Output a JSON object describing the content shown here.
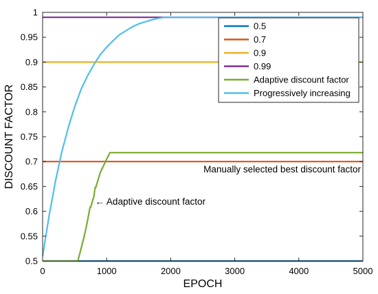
{
  "chart_data": {
    "type": "line",
    "xlabel": "EPOCH",
    "ylabel": "DISCOUNT FACTOR",
    "xlim": [
      0,
      5000
    ],
    "ylim": [
      0.5,
      1
    ],
    "x_ticks": [
      0,
      1000,
      2000,
      3000,
      4000,
      5000
    ],
    "y_ticks": [
      0.5,
      0.55,
      0.6,
      0.65,
      0.7,
      0.75,
      0.8,
      0.85,
      0.9,
      0.95,
      1
    ],
    "grid": false,
    "legend_position": "top-right",
    "series": [
      {
        "name": "0.5",
        "color": "#0072BD",
        "x": [
          0,
          5000
        ],
        "y": [
          0.5,
          0.5
        ]
      },
      {
        "name": "0.7",
        "color": "#D95319",
        "x": [
          0,
          5000
        ],
        "y": [
          0.7,
          0.7
        ]
      },
      {
        "name": "0.9",
        "color": "#EDB120",
        "x": [
          0,
          5000
        ],
        "y": [
          0.9,
          0.9
        ]
      },
      {
        "name": "0.99",
        "color": "#7E2F8E",
        "x": [
          0,
          5000
        ],
        "y": [
          0.99,
          0.99
        ]
      },
      {
        "name": "Adaptive discount factor",
        "color": "#77AC30",
        "x": [
          0,
          550,
          650,
          700,
          740,
          750,
          800,
          820,
          830,
          900,
          1000,
          1050,
          5000
        ],
        "y": [
          0.5,
          0.5,
          0.55,
          0.58,
          0.608,
          0.608,
          0.63,
          0.648,
          0.648,
          0.678,
          0.705,
          0.718,
          0.718
        ]
      },
      {
        "name": "Progressively increasing",
        "color": "#4DBEEE",
        "x": [
          0,
          50,
          100,
          150,
          200,
          300,
          400,
          500,
          600,
          700,
          800,
          900,
          1000,
          1100,
          1200,
          1300,
          1400,
          1500,
          1600,
          1700,
          1800,
          1900,
          2000,
          5000
        ],
        "y": [
          0.51,
          0.55,
          0.59,
          0.625,
          0.66,
          0.72,
          0.768,
          0.81,
          0.845,
          0.872,
          0.895,
          0.915,
          0.93,
          0.943,
          0.955,
          0.963,
          0.971,
          0.977,
          0.981,
          0.985,
          0.988,
          0.99,
          0.99,
          0.99
        ]
      }
    ],
    "annotations": [
      {
        "text": "Manually selected best discount factor",
        "x": 3320,
        "y": 0.69
      },
      {
        "text": "← Adaptive discount factor",
        "x": 820,
        "y": 0.627
      }
    ]
  }
}
